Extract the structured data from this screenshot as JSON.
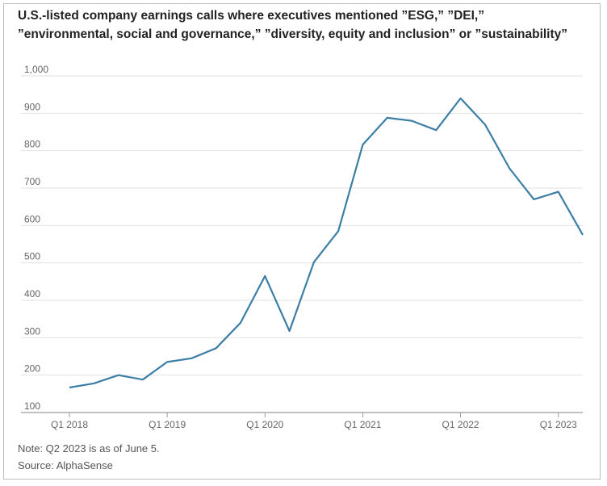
{
  "chart_data": {
    "type": "line",
    "title": "U.S.-listed company earnings calls where executives mentioned ”ESG,” ”DEI,” ”environmental, social and governance,” ”diversity, equity and inclusion” or ”sustainability”",
    "title_line1": "U.S.-listed company earnings calls where executives mentioned ”ESG,” ”DEI,”",
    "title_line2": "”environmental, social and governance,” ”diversity, equity and inclusion” or ”sustainability”",
    "xlabel": "",
    "ylabel": "",
    "ylim": [
      100,
      1000
    ],
    "yticks": [
      100,
      200,
      300,
      400,
      500,
      600,
      700,
      800,
      900,
      1000
    ],
    "ytick_labels": [
      "100",
      "200",
      "300",
      "400",
      "500",
      "600",
      "700",
      "800",
      "900",
      "1,000"
    ],
    "x": [
      "Q1 2018",
      "Q2 2018",
      "Q3 2018",
      "Q4 2018",
      "Q1 2019",
      "Q2 2019",
      "Q3 2019",
      "Q4 2019",
      "Q1 2020",
      "Q2 2020",
      "Q3 2020",
      "Q4 2020",
      "Q1 2021",
      "Q2 2021",
      "Q3 2021",
      "Q4 2021",
      "Q1 2022",
      "Q2 2022",
      "Q3 2022",
      "Q4 2022",
      "Q1 2023",
      "Q2 2023"
    ],
    "xtick_labels": [
      "Q1 2018",
      "Q1 2019",
      "Q1 2020",
      "Q1 2021",
      "Q1 2022",
      "Q1 2023"
    ],
    "series": [
      {
        "values": [
          167,
          178,
          200,
          188,
          235,
          245,
          272,
          340,
          465,
          318,
          502,
          585,
          816,
          888,
          880,
          855,
          940,
          870,
          753,
          670,
          690,
          575
        ]
      }
    ],
    "grid": true,
    "line_color": "#3d7ea6"
  },
  "notes": {
    "note": "Note: Q2 2023 is as of June 5.",
    "source": "Source: AlphaSense"
  }
}
